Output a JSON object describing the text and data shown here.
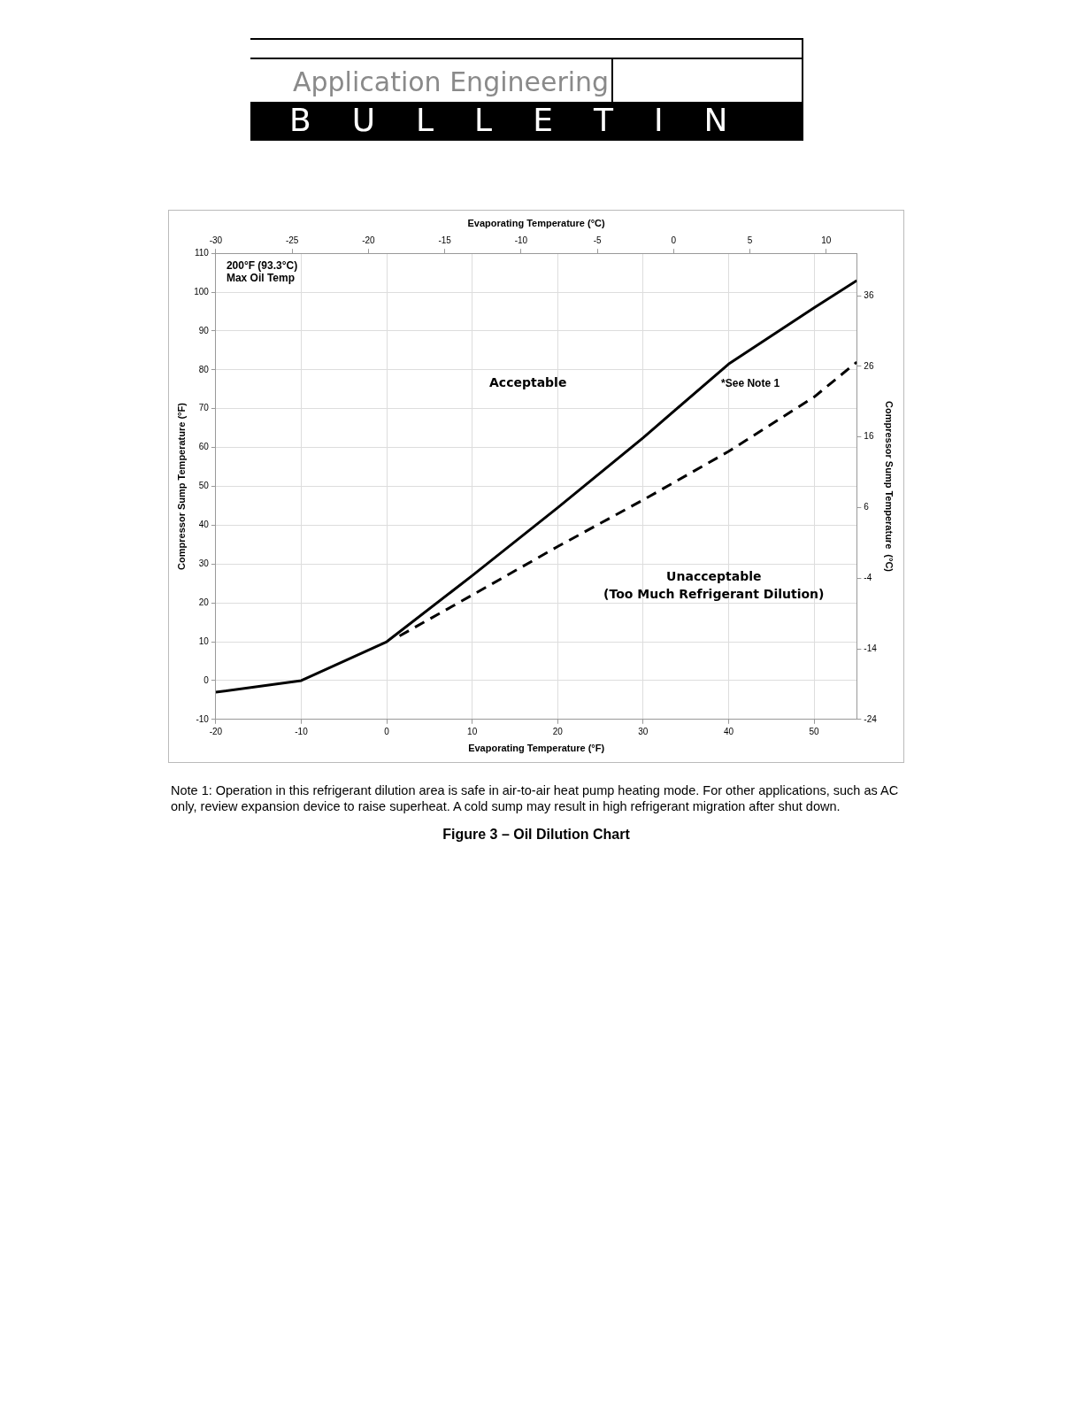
{
  "chart_data": {
    "type": "line",
    "title": "Figure 3 – Oil Dilution Chart",
    "xlabel": "Evaporating Temperature (°F)",
    "ylabel": "Compressor Sump Temperature (°F)",
    "x2label": "Evaporating Temperature (°C)",
    "y2label": "Compressor Sump Temperature  (°C)",
    "xlim": [
      -20,
      55
    ],
    "xticks": [
      -20,
      -10,
      0,
      10,
      20,
      30,
      40,
      50
    ],
    "ylim": [
      -10,
      110
    ],
    "yticks": [
      -10,
      0,
      10,
      20,
      30,
      40,
      50,
      60,
      70,
      80,
      90,
      100,
      110
    ],
    "x2lim": [
      -30,
      12
    ],
    "x2ticks": [
      -30,
      -25,
      -20,
      -15,
      -10,
      -5,
      0,
      5,
      10
    ],
    "y2lim": [
      -24,
      42
    ],
    "y2ticks": [
      -24,
      -14,
      -4,
      6,
      16,
      26,
      36
    ],
    "grid": true,
    "legend": false,
    "marker": "none",
    "series": [
      {
        "color": "#000000",
        "line_style": "solid",
        "x": [
          -20,
          -10,
          0,
          10,
          20,
          30,
          40,
          50,
          55
        ],
        "values": [
          -3,
          0,
          10,
          27,
          44.5,
          62.5,
          81.5,
          96,
          103
        ]
      },
      {
        "color": "#000000",
        "line_style": "dashed",
        "x": [
          1.5,
          10,
          20,
          30,
          40,
          50,
          55
        ],
        "values": [
          11.5,
          22,
          34.5,
          46.5,
          59,
          73,
          82
        ]
      }
    ],
    "annotations": [
      "Application Engineering",
      "BULLETIN",
      "200°F (93.3°C)\nMax Oil Temp",
      "Acceptable",
      "*See Note 1",
      "Unacceptable\n(Too Much Refrigerant Dilution)",
      "Note 1: Operation in this refrigerant dilution area is safe in air-to-air heat pump heating mode. For other applications, such as AC only, review expansion device to raise superheat. A cold sump may result in high refrigerant migration after shut down."
    ]
  }
}
